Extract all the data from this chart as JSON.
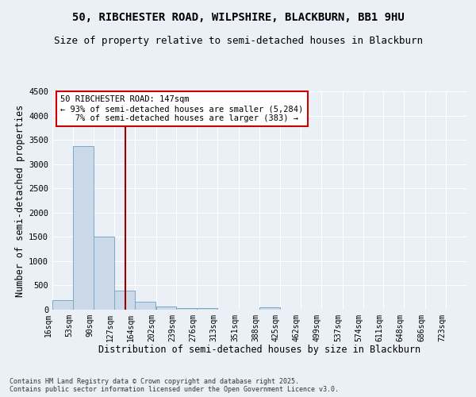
{
  "title1": "50, RIBCHESTER ROAD, WILPSHIRE, BLACKBURN, BB1 9HU",
  "title2": "Size of property relative to semi-detached houses in Blackburn",
  "xlabel": "Distribution of semi-detached houses by size in Blackburn",
  "ylabel": "Number of semi-detached properties",
  "bar_color": "#ccd9e8",
  "bar_edge_color": "#7aaac8",
  "annotation_line_color": "#990000",
  "property_size": 147,
  "annotation_text": "50 RIBCHESTER ROAD: 147sqm\n← 93% of semi-detached houses are smaller (5,284)\n   7% of semi-detached houses are larger (383) →",
  "footer": "Contains HM Land Registry data © Crown copyright and database right 2025.\nContains public sector information licensed under the Open Government Licence v3.0.",
  "bins": [
    16,
    53,
    90,
    127,
    164,
    202,
    239,
    276,
    313,
    351,
    388,
    425,
    462,
    499,
    537,
    574,
    611,
    648,
    686,
    723,
    760
  ],
  "counts": [
    200,
    3370,
    1500,
    400,
    160,
    65,
    40,
    30,
    0,
    0,
    50,
    0,
    0,
    0,
    0,
    0,
    0,
    0,
    0,
    0
  ],
  "ylim": [
    0,
    4500
  ],
  "yticks": [
    0,
    500,
    1000,
    1500,
    2000,
    2500,
    3000,
    3500,
    4000,
    4500
  ],
  "background_color": "#eaf0f6",
  "grid_color": "#ffffff",
  "title_fontsize": 10,
  "subtitle_fontsize": 9,
  "axis_label_fontsize": 8.5,
  "tick_fontsize": 7,
  "footer_fontsize": 6
}
